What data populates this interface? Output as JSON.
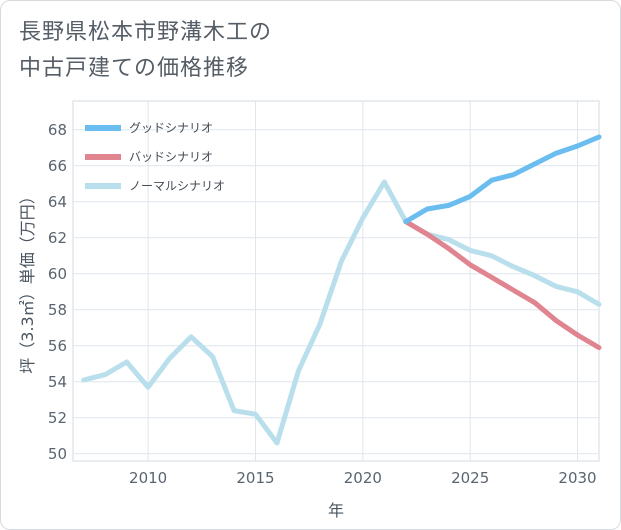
{
  "title_line1": "長野県松本市野溝木工の",
  "title_line2": "中古戸建ての価格推移",
  "chart_data": {
    "type": "line",
    "title": "長野県松本市野溝木工の中古戸建ての価格推移",
    "xlabel": "年",
    "ylabel": "坪（3.3㎡）単価（万円）",
    "xlim": [
      2006.5,
      2031
    ],
    "ylim": [
      49.6,
      69.6
    ],
    "x_ticks": [
      2010,
      2015,
      2020,
      2025,
      2030
    ],
    "y_ticks": [
      50,
      52,
      54,
      56,
      58,
      60,
      62,
      64,
      66,
      68
    ],
    "grid": true,
    "legend_position": "top-left",
    "series": [
      {
        "name": "グッドシナリオ",
        "color": "#6bbdf0",
        "x": [
          2022,
          2023,
          2024,
          2025,
          2026,
          2027,
          2028,
          2029,
          2030,
          2031
        ],
        "values": [
          62.9,
          63.6,
          63.8,
          64.3,
          65.2,
          65.5,
          66.1,
          66.7,
          67.1,
          67.6
        ]
      },
      {
        "name": "バッドシナリオ",
        "color": "#e0848f",
        "x": [
          2022,
          2023,
          2024,
          2025,
          2026,
          2027,
          2028,
          2029,
          2030,
          2031
        ],
        "values": [
          62.9,
          62.2,
          61.4,
          60.5,
          59.8,
          59.1,
          58.4,
          57.4,
          56.6,
          55.9
        ]
      },
      {
        "name": "ノーマルシナリオ",
        "color": "#b9dfec",
        "x": [
          2007,
          2008,
          2009,
          2010,
          2011,
          2012,
          2013,
          2014,
          2015,
          2016,
          2017,
          2018,
          2019,
          2020,
          2021,
          2022,
          2023,
          2024,
          2025,
          2026,
          2027,
          2028,
          2029,
          2030,
          2031
        ],
        "values": [
          54.1,
          54.4,
          55.1,
          53.7,
          55.3,
          56.5,
          55.4,
          52.4,
          52.2,
          50.6,
          54.6,
          57.2,
          60.7,
          63.1,
          65.1,
          62.9,
          62.2,
          61.9,
          61.3,
          61.0,
          60.4,
          59.9,
          59.3,
          59.0,
          58.3
        ]
      }
    ]
  }
}
